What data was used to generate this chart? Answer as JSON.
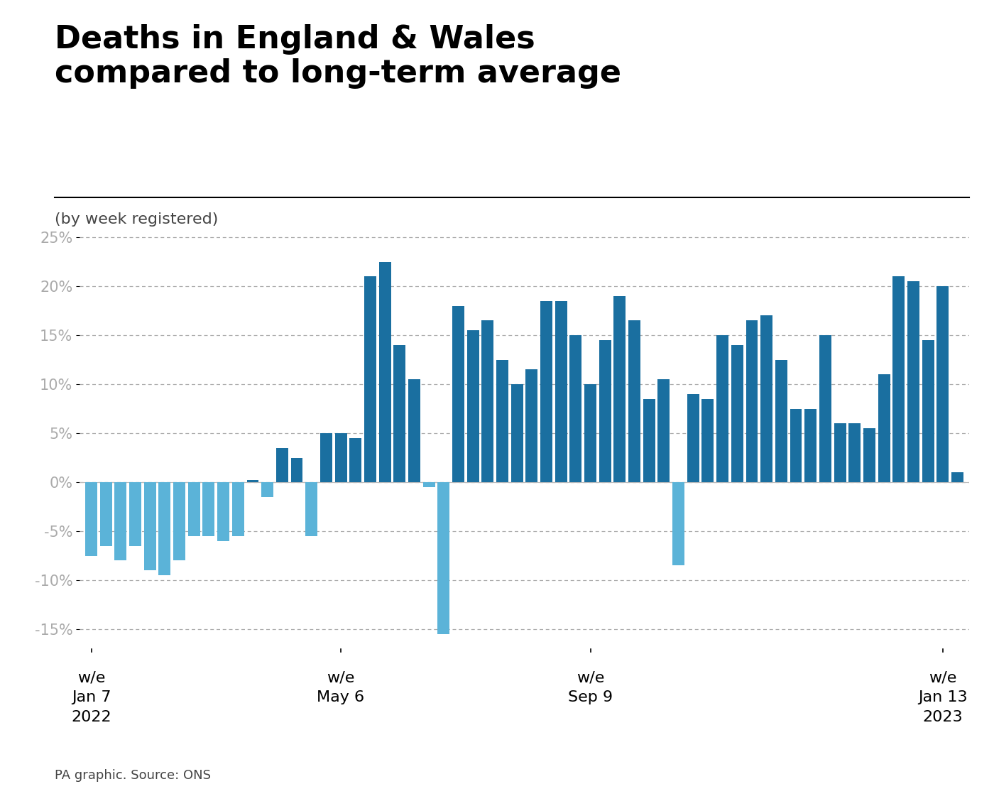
{
  "title": "Deaths in England & Wales\ncompared to long-term average",
  "subtitle": "(by week registered)",
  "source": "PA graphic. Source: ONS",
  "ylim": [
    -17,
    27
  ],
  "yticks": [
    -15,
    -10,
    -5,
    0,
    5,
    10,
    15,
    20,
    25
  ],
  "bar_color_positive": "#1a6fa0",
  "bar_color_negative": "#5bb3d8",
  "xlabel_bar_indices": [
    0,
    17,
    34,
    58
  ],
  "xlabel_line1": [
    "w/e",
    "w/e",
    "w/e",
    "w/e"
  ],
  "xlabel_line2": [
    "Jan 7",
    "May 6",
    "Sep 9",
    "Jan 13"
  ],
  "xlabel_line3": [
    "2022",
    "",
    "",
    "2023"
  ],
  "values": [
    -7.5,
    -6.5,
    -8.0,
    -6.5,
    -9.0,
    -9.5,
    -8.0,
    -5.5,
    -5.5,
    -6.0,
    -5.5,
    0.2,
    -1.5,
    3.5,
    2.5,
    -5.5,
    5.0,
    5.0,
    4.5,
    21.0,
    22.5,
    14.0,
    10.5,
    -0.5,
    -15.5,
    18.0,
    15.5,
    16.5,
    12.5,
    10.0,
    11.5,
    18.5,
    18.5,
    15.0,
    10.0,
    14.5,
    19.0,
    16.5,
    8.5,
    10.5,
    -8.5,
    9.0,
    8.5,
    15.0,
    14.0,
    16.5,
    17.0,
    12.5,
    7.5,
    7.5,
    15.0,
    6.0,
    6.0,
    5.5,
    11.0,
    21.0,
    20.5,
    14.5,
    20.0,
    1.0
  ],
  "background_color": "#ffffff"
}
